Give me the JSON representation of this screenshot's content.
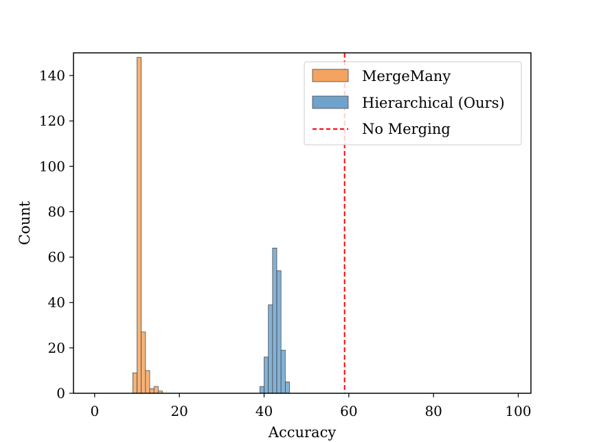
{
  "chart_data": {
    "type": "histogram",
    "xlabel": "Accuracy",
    "ylabel": "Count",
    "xlim": [
      -5,
      103
    ],
    "ylim": [
      0,
      150
    ],
    "x_ticks": [
      0,
      20,
      40,
      60,
      80,
      100
    ],
    "y_ticks": [
      0,
      20,
      40,
      60,
      80,
      100,
      120,
      140
    ],
    "bin_width": 1,
    "series": [
      {
        "name": "MergeMany",
        "color": "#f4a460",
        "bins": [
          {
            "x": 9,
            "count": 9
          },
          {
            "x": 10,
            "count": 148
          },
          {
            "x": 11,
            "count": 27
          },
          {
            "x": 12,
            "count": 10
          },
          {
            "x": 13,
            "count": 2
          },
          {
            "x": 14,
            "count": 3
          },
          {
            "x": 15,
            "count": 1
          }
        ]
      },
      {
        "name": "Hierarchical (Ours)",
        "color": "#6fa3cc",
        "bins": [
          {
            "x": 39,
            "count": 3
          },
          {
            "x": 40,
            "count": 16
          },
          {
            "x": 41,
            "count": 39
          },
          {
            "x": 42,
            "count": 64
          },
          {
            "x": 43,
            "count": 54
          },
          {
            "x": 44,
            "count": 19
          },
          {
            "x": 45,
            "count": 5
          }
        ]
      }
    ],
    "reference_line": {
      "name": "No Merging",
      "x": 59,
      "color": "#ff0000",
      "style": "dashed"
    },
    "legend": {
      "placement": "top-right",
      "entries": [
        "MergeMany",
        "Hierarchical (Ours)",
        "No Merging"
      ]
    }
  }
}
